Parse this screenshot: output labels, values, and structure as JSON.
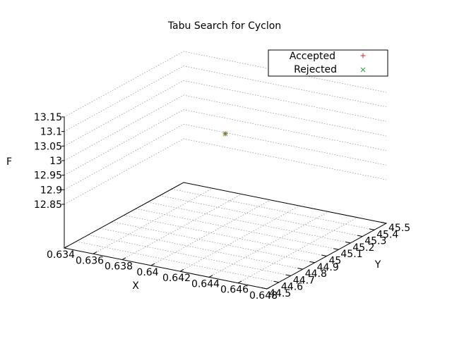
{
  "chart_data": {
    "type": "scatter",
    "title": "Tabu Search for Cyclon",
    "xlabel": "X",
    "ylabel": "Y",
    "zlabel": "F",
    "x_ticks": [
      "0.634",
      "0.636",
      "0.638",
      "0.64",
      "0.642",
      "0.644",
      "0.646",
      "0.648"
    ],
    "y_ticks": [
      "44.5",
      "44.6",
      "44.7",
      "44.8",
      "44.9",
      "45",
      "45.1",
      "45.2",
      "45.3",
      "45.4",
      "45.5"
    ],
    "z_ticks": [
      "12.85",
      "12.9",
      "12.95",
      "13",
      "13.05",
      "13.1",
      "13.15"
    ],
    "xlim": [
      0.634,
      0.648
    ],
    "ylim": [
      44.5,
      45.5
    ],
    "zlim": [
      12.85,
      13.15
    ],
    "grid": true,
    "legend_position": "top-right",
    "series": [
      {
        "name": "Accepted",
        "marker": "+",
        "color": "#d62728",
        "points": [
          {
            "x": 0.641,
            "y": 45.0,
            "z": 13.05
          }
        ]
      },
      {
        "name": "Rejected",
        "marker": "x",
        "color": "#2ca02c",
        "points": [
          {
            "x": 0.641,
            "y": 45.0,
            "z": 13.05
          }
        ]
      }
    ]
  }
}
